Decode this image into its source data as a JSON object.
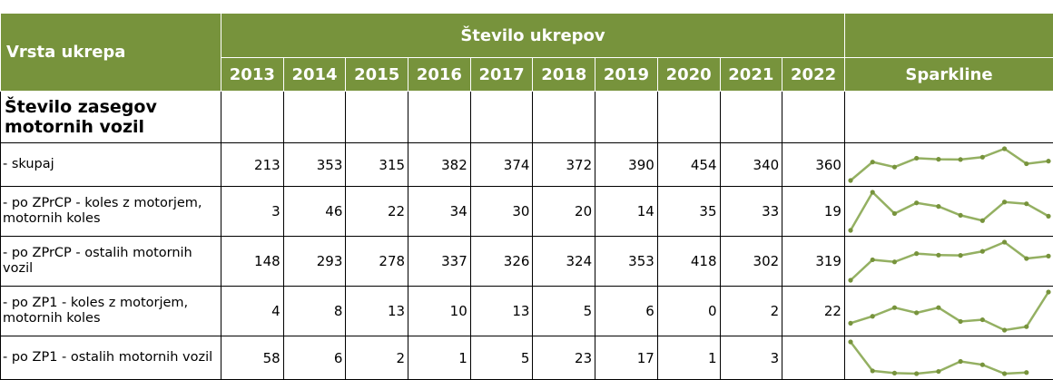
{
  "header": {
    "title": "Vrsta ukrepa",
    "group": "Število ukrepov",
    "years": [
      "2013",
      "2014",
      "2015",
      "2016",
      "2017",
      "2018",
      "2019",
      "2020",
      "2021",
      "2022"
    ],
    "sparkline": "Sparkline"
  },
  "section": "Število zasegov motornih vozil",
  "rows": [
    {
      "label": "- skupaj",
      "values": [
        213,
        353,
        315,
        382,
        374,
        372,
        390,
        454,
        340,
        360
      ]
    },
    {
      "label": "- po ZPrCP - koles z motorjem, motornih koles",
      "values": [
        3,
        46,
        22,
        34,
        30,
        20,
        14,
        35,
        33,
        19
      ]
    },
    {
      "label": "- po ZPrCP - ostalih motornih vozil",
      "values": [
        148,
        293,
        278,
        337,
        326,
        324,
        353,
        418,
        302,
        319
      ]
    },
    {
      "label": "- po ZP1 - koles z motorjem, motornih koles",
      "values": [
        4,
        8,
        13,
        10,
        13,
        5,
        6,
        0,
        2,
        22
      ]
    },
    {
      "label": "- po ZP1 - ostalih motornih vozil",
      "values": [
        58,
        6,
        2,
        1,
        5,
        23,
        17,
        1,
        3,
        null
      ]
    }
  ]
}
